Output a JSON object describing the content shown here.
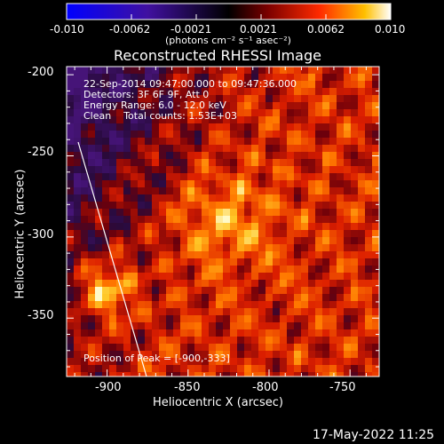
{
  "colorbar": {
    "ticks": [
      "-0.010",
      "-0.0062",
      "-0.0021",
      "0.0021",
      "0.0062",
      "0.010"
    ],
    "units_label": "(photons cm⁻² s⁻¹ asec⁻²)"
  },
  "image": {
    "title": "Reconstructed RHESSI Image",
    "info_lines": [
      "22-Sep-2014 09:47:00.000 to 09:47:36.000",
      "Detectors: 3F 6F 9F, Att 0",
      "Energy Range: 6.0 - 12.0 keV",
      "Clean    Total counts: 1.53E+03"
    ],
    "peak_text": "Position of Peak = [-900,-333]",
    "x_axis_label": "Heliocentric X (arcsec)",
    "y_axis_label": "Heliocentric Y (arcsec)",
    "x_ticks": [
      "-900",
      "-850",
      "-800",
      "-750"
    ],
    "y_ticks": [
      "-200",
      "-250",
      "-300",
      "-350"
    ],
    "x_tick_values": [
      -900,
      -850,
      -800,
      -750
    ],
    "y_tick_values": [
      -200,
      -250,
      -300,
      -350
    ],
    "x_range": [
      -925,
      -732
    ],
    "y_range": [
      -386,
      -195
    ],
    "peak_position": [
      -900,
      -333
    ],
    "limb_visible": true
  },
  "footer": {
    "timestamp": "17-May-2022 11:25"
  },
  "colors": {
    "background": "#000000",
    "text": "#ffffff",
    "colormap": [
      "#0000ff",
      "#3a1a8c",
      "#000000",
      "#8a0000",
      "#ff3a00",
      "#ffb000",
      "#ffffff"
    ]
  }
}
